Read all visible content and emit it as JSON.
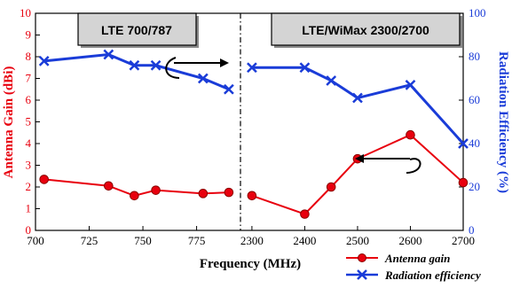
{
  "chart_data": {
    "type": "line",
    "xlabel": "Frequency (MHz)",
    "ylabel_left": "Antenna Gain (dBi)",
    "ylabel_right": "Radiation Efficiency (%)",
    "ylim_left": [
      0,
      10
    ],
    "ylim_right": [
      0,
      100
    ],
    "left_ticks": [
      "0",
      "1",
      "2",
      "3",
      "4",
      "5",
      "6",
      "7",
      "8",
      "9",
      "10"
    ],
    "right_ticks": [
      "0",
      "20",
      "40",
      "60",
      "80",
      "100"
    ],
    "panels": [
      {
        "band_label": "LTE  700/787",
        "xlim": [
          700,
          795
        ],
        "x_ticks": [
          "700",
          "725",
          "750",
          "775"
        ],
        "gain": {
          "x": [
            704,
            734,
            746,
            756,
            778,
            790
          ],
          "y": [
            2.35,
            2.05,
            1.6,
            1.85,
            1.7,
            1.75
          ]
        },
        "efficiency": {
          "x": [
            704,
            734,
            746,
            756,
            778,
            790
          ],
          "y": [
            78,
            81,
            76,
            76,
            70,
            65
          ]
        }
      },
      {
        "band_label": "LTE/WiMax  2300/2700",
        "xlim": [
          2280,
          2700
        ],
        "x_ticks": [
          "2300",
          "2400",
          "2500",
          "2600",
          "2700"
        ],
        "gain": {
          "x": [
            2300,
            2400,
            2450,
            2500,
            2600,
            2700
          ],
          "y": [
            1.6,
            0.75,
            2.0,
            3.3,
            4.4,
            2.2
          ]
        },
        "efficiency": {
          "x": [
            2300,
            2400,
            2450,
            2500,
            2600,
            2700
          ],
          "y": [
            75,
            75,
            69,
            61,
            67,
            40
          ]
        }
      }
    ],
    "series": [
      {
        "name": "Antenna gain",
        "axis": "left",
        "color": "#e8000e",
        "marker": "circle"
      },
      {
        "name": "Radiation efficiency",
        "axis": "right",
        "color": "#1a3cd8",
        "marker": "x"
      }
    ],
    "legend": "bottom-right",
    "grid": false
  }
}
